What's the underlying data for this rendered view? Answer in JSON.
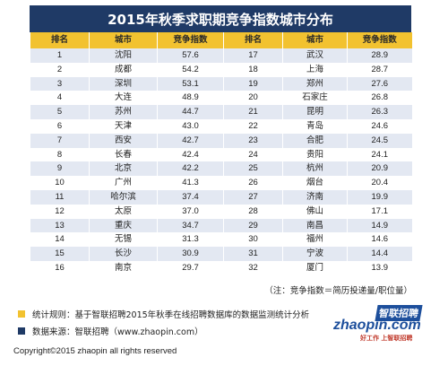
{
  "title": "2015年秋季求职期竞争指数城市分布",
  "headers": [
    "排名",
    "城市",
    "竞争指数",
    "排名",
    "城市",
    "竞争指数"
  ],
  "rows": [
    [
      "1",
      "沈阳",
      "57.6",
      "17",
      "武汉",
      "28.9"
    ],
    [
      "2",
      "成都",
      "54.2",
      "18",
      "上海",
      "28.7"
    ],
    [
      "3",
      "深圳",
      "53.1",
      "19",
      "郑州",
      "27.6"
    ],
    [
      "4",
      "大连",
      "48.9",
      "20",
      "石家庄",
      "26.8"
    ],
    [
      "5",
      "苏州",
      "44.7",
      "21",
      "昆明",
      "26.3"
    ],
    [
      "6",
      "天津",
      "43.0",
      "22",
      "青岛",
      "24.6"
    ],
    [
      "7",
      "西安",
      "42.7",
      "23",
      "合肥",
      "24.5"
    ],
    [
      "8",
      "长春",
      "42.4",
      "24",
      "贵阳",
      "24.1"
    ],
    [
      "9",
      "北京",
      "42.2",
      "25",
      "杭州",
      "20.9"
    ],
    [
      "10",
      "广州",
      "41.3",
      "26",
      "烟台",
      "20.4"
    ],
    [
      "11",
      "哈尔滨",
      "37.4",
      "27",
      "济南",
      "19.9"
    ],
    [
      "12",
      "太原",
      "37.0",
      "28",
      "佛山",
      "17.1"
    ],
    [
      "13",
      "重庆",
      "34.7",
      "29",
      "南昌",
      "14.9"
    ],
    [
      "14",
      "无锡",
      "31.3",
      "30",
      "福州",
      "14.6"
    ],
    [
      "15",
      "长沙",
      "30.9",
      "31",
      "宁波",
      "14.4"
    ],
    [
      "16",
      "南京",
      "29.7",
      "32",
      "厦门",
      "13.9"
    ]
  ],
  "note": "（注：竞争指数＝简历投递量/职位量）",
  "legend": {
    "rule": "统计规则：基于智联招聘2015年秋季在线招聘数据库的数据监测统计分析",
    "source": "数据来源：智联招聘（www.zhaopin.com）",
    "rule_color": "#f2c230",
    "source_color": "#1f3a66"
  },
  "logo": {
    "latin": "zhaopin.com",
    "chinese": "智联招聘",
    "slogan": "好工作 上智联招聘"
  },
  "copyright": "Copyright©2015 zhaopin all rights reserved"
}
